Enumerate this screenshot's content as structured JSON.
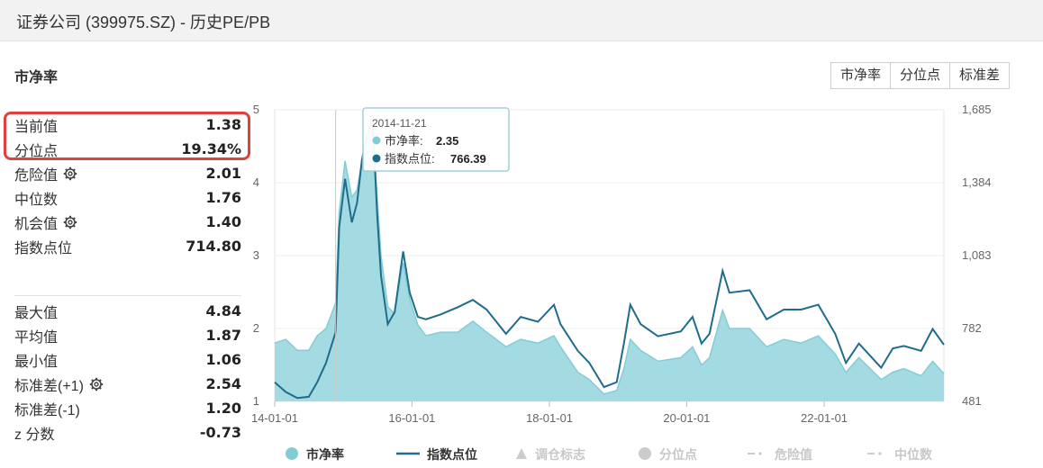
{
  "window": {
    "title": "证券公司 (399975.SZ) - 历史PE/PB"
  },
  "section_title": "市净率",
  "tabs": [
    "市净率",
    "分位点",
    "标准差"
  ],
  "stats_top": [
    {
      "label": "当前值",
      "value": "1.38",
      "gear": false
    },
    {
      "label": "分位点",
      "value": "19.34%",
      "gear": false
    },
    {
      "label": "危险值",
      "value": "2.01",
      "gear": true
    },
    {
      "label": "中位数",
      "value": "1.76",
      "gear": false
    },
    {
      "label": "机会值",
      "value": "1.40",
      "gear": true
    },
    {
      "label": "指数点位",
      "value": "714.80",
      "gear": false
    }
  ],
  "stats_bottom": [
    {
      "label": "最大值",
      "value": "4.84",
      "gear": false
    },
    {
      "label": "平均值",
      "value": "1.87",
      "gear": false
    },
    {
      "label": "最小值",
      "value": "1.06",
      "gear": false
    },
    {
      "label": "标准差(+1)",
      "value": "2.54",
      "gear": true
    },
    {
      "label": "标准差(-1)",
      "value": "1.20",
      "gear": false
    },
    {
      "label": "z 分数",
      "value": "-0.73",
      "gear": false
    }
  ],
  "colors": {
    "pb_fill": "#9fd9e0",
    "pb_line": "#84ccd5",
    "index_line": "#1f6c8c",
    "highlight": "#e0413d"
  },
  "chart_data": {
    "type": "area",
    "x_range": [
      "2014-01-01",
      "2023-09-30"
    ],
    "x_ticks": [
      {
        "label": "14-01-01",
        "date": "2014-01-01"
      },
      {
        "label": "16-01-01",
        "date": "2016-01-01"
      },
      {
        "label": "18-01-01",
        "date": "2018-01-01"
      },
      {
        "label": "20-01-01",
        "date": "2020-01-01"
      },
      {
        "label": "22-01-01",
        "date": "2022-01-01"
      }
    ],
    "y_left": {
      "min": 1,
      "max": 5,
      "ticks": [
        "1",
        "2",
        "3",
        "4",
        "5"
      ]
    },
    "y_right": {
      "min": 481,
      "max": 1685,
      "ticks": [
        "481",
        "782",
        "1,083",
        "1,384",
        "1,685"
      ]
    },
    "series": [
      {
        "name": "市净率",
        "axis": "left",
        "points": [
          [
            "2014-01-01",
            1.8
          ],
          [
            "2014-03-01",
            1.85
          ],
          [
            "2014-05-01",
            1.7
          ],
          [
            "2014-07-01",
            1.7
          ],
          [
            "2014-08-15",
            1.9
          ],
          [
            "2014-10-01",
            2.0
          ],
          [
            "2014-11-21",
            2.35
          ],
          [
            "2014-12-10",
            3.6
          ],
          [
            "2015-01-10",
            4.3
          ],
          [
            "2015-02-15",
            3.8
          ],
          [
            "2015-03-15",
            3.9
          ],
          [
            "2015-04-10",
            4.3
          ],
          [
            "2015-05-01",
            4.6
          ],
          [
            "2015-06-05",
            4.8
          ],
          [
            "2015-06-30",
            3.8
          ],
          [
            "2015-07-20",
            3.0
          ],
          [
            "2015-08-25",
            2.3
          ],
          [
            "2015-10-01",
            2.2
          ],
          [
            "2015-11-15",
            2.9
          ],
          [
            "2015-12-20",
            2.4
          ],
          [
            "2016-02-01",
            2.05
          ],
          [
            "2016-03-15",
            1.9
          ],
          [
            "2016-06-01",
            1.95
          ],
          [
            "2016-09-01",
            1.95
          ],
          [
            "2016-11-20",
            2.1
          ],
          [
            "2017-02-01",
            1.95
          ],
          [
            "2017-05-15",
            1.75
          ],
          [
            "2017-08-01",
            1.85
          ],
          [
            "2017-11-01",
            1.8
          ],
          [
            "2018-01-25",
            1.9
          ],
          [
            "2018-03-01",
            1.75
          ],
          [
            "2018-06-01",
            1.4
          ],
          [
            "2018-08-01",
            1.3
          ],
          [
            "2018-10-18",
            1.1
          ],
          [
            "2018-12-25",
            1.15
          ],
          [
            "2019-02-01",
            1.45
          ],
          [
            "2019-03-07",
            1.85
          ],
          [
            "2019-05-01",
            1.7
          ],
          [
            "2019-08-01",
            1.55
          ],
          [
            "2019-12-01",
            1.6
          ],
          [
            "2020-02-01",
            1.75
          ],
          [
            "2020-03-20",
            1.5
          ],
          [
            "2020-05-01",
            1.6
          ],
          [
            "2020-07-10",
            2.25
          ],
          [
            "2020-08-15",
            2.0
          ],
          [
            "2020-12-01",
            2.0
          ],
          [
            "2021-03-01",
            1.75
          ],
          [
            "2021-06-01",
            1.85
          ],
          [
            "2021-09-01",
            1.8
          ],
          [
            "2021-12-01",
            1.9
          ],
          [
            "2022-03-01",
            1.65
          ],
          [
            "2022-04-27",
            1.4
          ],
          [
            "2022-07-05",
            1.6
          ],
          [
            "2022-10-31",
            1.3
          ],
          [
            "2023-01-01",
            1.4
          ],
          [
            "2023-03-01",
            1.45
          ],
          [
            "2023-06-01",
            1.35
          ],
          [
            "2023-08-01",
            1.55
          ],
          [
            "2023-09-30",
            1.38
          ]
        ]
      },
      {
        "name": "指数点位",
        "axis": "right",
        "points": [
          [
            "2014-01-01",
            560
          ],
          [
            "2014-03-01",
            520
          ],
          [
            "2014-05-01",
            495
          ],
          [
            "2014-07-01",
            500
          ],
          [
            "2014-08-15",
            560
          ],
          [
            "2014-10-01",
            640
          ],
          [
            "2014-11-21",
            766.39
          ],
          [
            "2014-12-10",
            1200
          ],
          [
            "2015-01-10",
            1400
          ],
          [
            "2015-02-15",
            1220
          ],
          [
            "2015-03-15",
            1300
          ],
          [
            "2015-04-10",
            1480
          ],
          [
            "2015-05-01",
            1560
          ],
          [
            "2015-06-05",
            1650
          ],
          [
            "2015-06-30",
            1250
          ],
          [
            "2015-07-20",
            1000
          ],
          [
            "2015-08-25",
            800
          ],
          [
            "2015-10-01",
            850
          ],
          [
            "2015-11-15",
            1100
          ],
          [
            "2015-12-20",
            930
          ],
          [
            "2016-02-01",
            830
          ],
          [
            "2016-03-15",
            820
          ],
          [
            "2016-06-01",
            840
          ],
          [
            "2016-09-01",
            870
          ],
          [
            "2016-11-20",
            900
          ],
          [
            "2017-02-01",
            860
          ],
          [
            "2017-05-15",
            760
          ],
          [
            "2017-08-01",
            830
          ],
          [
            "2017-11-01",
            810
          ],
          [
            "2018-01-25",
            880
          ],
          [
            "2018-03-01",
            800
          ],
          [
            "2018-06-01",
            690
          ],
          [
            "2018-08-01",
            640
          ],
          [
            "2018-10-18",
            540
          ],
          [
            "2018-12-25",
            560
          ],
          [
            "2019-02-01",
            720
          ],
          [
            "2019-03-07",
            880
          ],
          [
            "2019-05-01",
            800
          ],
          [
            "2019-08-01",
            750
          ],
          [
            "2019-12-01",
            770
          ],
          [
            "2020-02-01",
            830
          ],
          [
            "2020-03-20",
            720
          ],
          [
            "2020-05-01",
            760
          ],
          [
            "2020-07-10",
            1020
          ],
          [
            "2020-08-15",
            930
          ],
          [
            "2020-12-01",
            940
          ],
          [
            "2021-03-01",
            820
          ],
          [
            "2021-06-01",
            860
          ],
          [
            "2021-09-01",
            860
          ],
          [
            "2021-12-01",
            880
          ],
          [
            "2022-03-01",
            760
          ],
          [
            "2022-04-27",
            640
          ],
          [
            "2022-07-05",
            720
          ],
          [
            "2022-10-31",
            620
          ],
          [
            "2023-01-01",
            700
          ],
          [
            "2023-03-01",
            710
          ],
          [
            "2023-06-01",
            690
          ],
          [
            "2023-08-01",
            780
          ],
          [
            "2023-09-30",
            714.8
          ]
        ]
      }
    ],
    "tooltip": {
      "date": "2014-11-21",
      "pb_label": "市净率:",
      "pb_value": "2.35",
      "index_label": "指数点位:",
      "index_value": "766.39"
    },
    "legend": [
      {
        "name": "市净率",
        "marker": "circle",
        "active": true
      },
      {
        "name": "指数点位",
        "marker": "line",
        "active": true
      },
      {
        "name": "调仓标志",
        "marker": "triangle",
        "active": false
      },
      {
        "name": "分位点",
        "marker": "circle",
        "active": false
      },
      {
        "name": "危险值",
        "marker": "dash",
        "active": false
      },
      {
        "name": "中位数",
        "marker": "dash",
        "active": false
      }
    ],
    "legend_placement": "bottom"
  }
}
